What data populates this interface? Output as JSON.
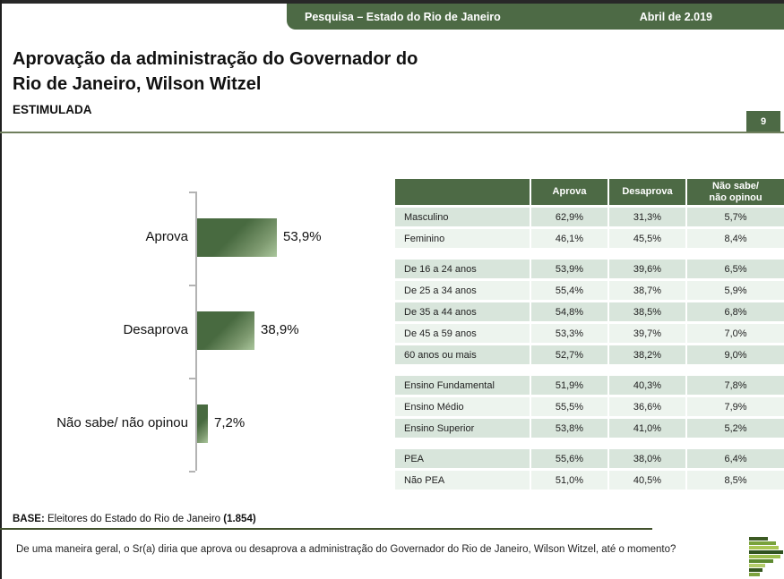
{
  "header": {
    "band_title": "Pesquisa – Estado do Rio de Janeiro",
    "band_date": "Abril de 2.019",
    "title_line1": "Aprovação da administração do Governador do",
    "title_line2": "Rio de Janeiro, Wilson Witzel",
    "subtitle": "ESTIMULADA",
    "page_number": "9"
  },
  "colors": {
    "brand_green": "#4d6a45",
    "table_row_dark": "#d8e5db",
    "table_row_light": "#edf4ee",
    "bar_gradient_dark": "#486a40",
    "bar_gradient_light": "#aac69c",
    "separator_line": "#6f7f5d",
    "base_rule": "#42512d"
  },
  "chart_data": {
    "type": "bar",
    "orientation": "horizontal",
    "title": "",
    "xlabel": "",
    "ylabel": "",
    "xlim": [
      0,
      100
    ],
    "grid": false,
    "legend": false,
    "categories": [
      "Aprova",
      "Desaprova",
      "Não sabe/ não opinou"
    ],
    "values": [
      53.9,
      38.9,
      7.2
    ],
    "value_labels": [
      "53,9%",
      "38,9%",
      "7,2%"
    ]
  },
  "table": {
    "headers": [
      "",
      "Aprova",
      "Desaprova",
      "Não sabe/\nnão opinou"
    ],
    "groups": [
      {
        "rows": [
          {
            "label": "Masculino",
            "values": [
              "62,9%",
              "31,3%",
              "5,7%"
            ]
          },
          {
            "label": "Feminino",
            "values": [
              "46,1%",
              "45,5%",
              "8,4%"
            ]
          }
        ]
      },
      {
        "rows": [
          {
            "label": "De 16 a 24 anos",
            "values": [
              "53,9%",
              "39,6%",
              "6,5%"
            ]
          },
          {
            "label": "De 25 a 34 anos",
            "values": [
              "55,4%",
              "38,7%",
              "5,9%"
            ]
          },
          {
            "label": "De 35 a 44 anos",
            "values": [
              "54,8%",
              "38,5%",
              "6,8%"
            ]
          },
          {
            "label": "De 45 a 59 anos",
            "values": [
              "53,3%",
              "39,7%",
              "7,0%"
            ]
          },
          {
            "label": "60 anos ou mais",
            "values": [
              "52,7%",
              "38,2%",
              "9,0%"
            ]
          }
        ]
      },
      {
        "rows": [
          {
            "label": "Ensino Fundamental",
            "values": [
              "51,9%",
              "40,3%",
              "7,8%"
            ]
          },
          {
            "label": "Ensino Médio",
            "values": [
              "55,5%",
              "36,6%",
              "7,9%"
            ]
          },
          {
            "label": "Ensino Superior",
            "values": [
              "53,8%",
              "41,0%",
              "5,2%"
            ]
          }
        ]
      },
      {
        "rows": [
          {
            "label": "PEA",
            "values": [
              "55,6%",
              "38,0%",
              "6,4%"
            ]
          },
          {
            "label": "Não PEA",
            "values": [
              "51,0%",
              "40,5%",
              "8,5%"
            ]
          }
        ]
      }
    ]
  },
  "footer": {
    "base_label": "BASE:",
    "base_text": " Eleitores do Estado do Rio de Janeiro ",
    "base_count": "(1.854)",
    "question": "De uma maneira geral, o Sr(a) diria que aprova ou desaprova a administração do Governador do Rio de Janeiro, Wilson Witzel, até o momento?"
  },
  "logo": {
    "bars": [
      {
        "w": 55,
        "c": "#3c5a23"
      },
      {
        "w": 78,
        "c": "#79a23c"
      },
      {
        "w": 88,
        "c": "#a9c654"
      },
      {
        "w": 100,
        "c": "#2f5220"
      },
      {
        "w": 92,
        "c": "#9cbf4e"
      },
      {
        "w": 70,
        "c": "#5d8a30"
      },
      {
        "w": 48,
        "c": "#b3cc6a"
      },
      {
        "w": 40,
        "c": "#35571f"
      },
      {
        "w": 32,
        "c": "#7da33e"
      }
    ]
  }
}
